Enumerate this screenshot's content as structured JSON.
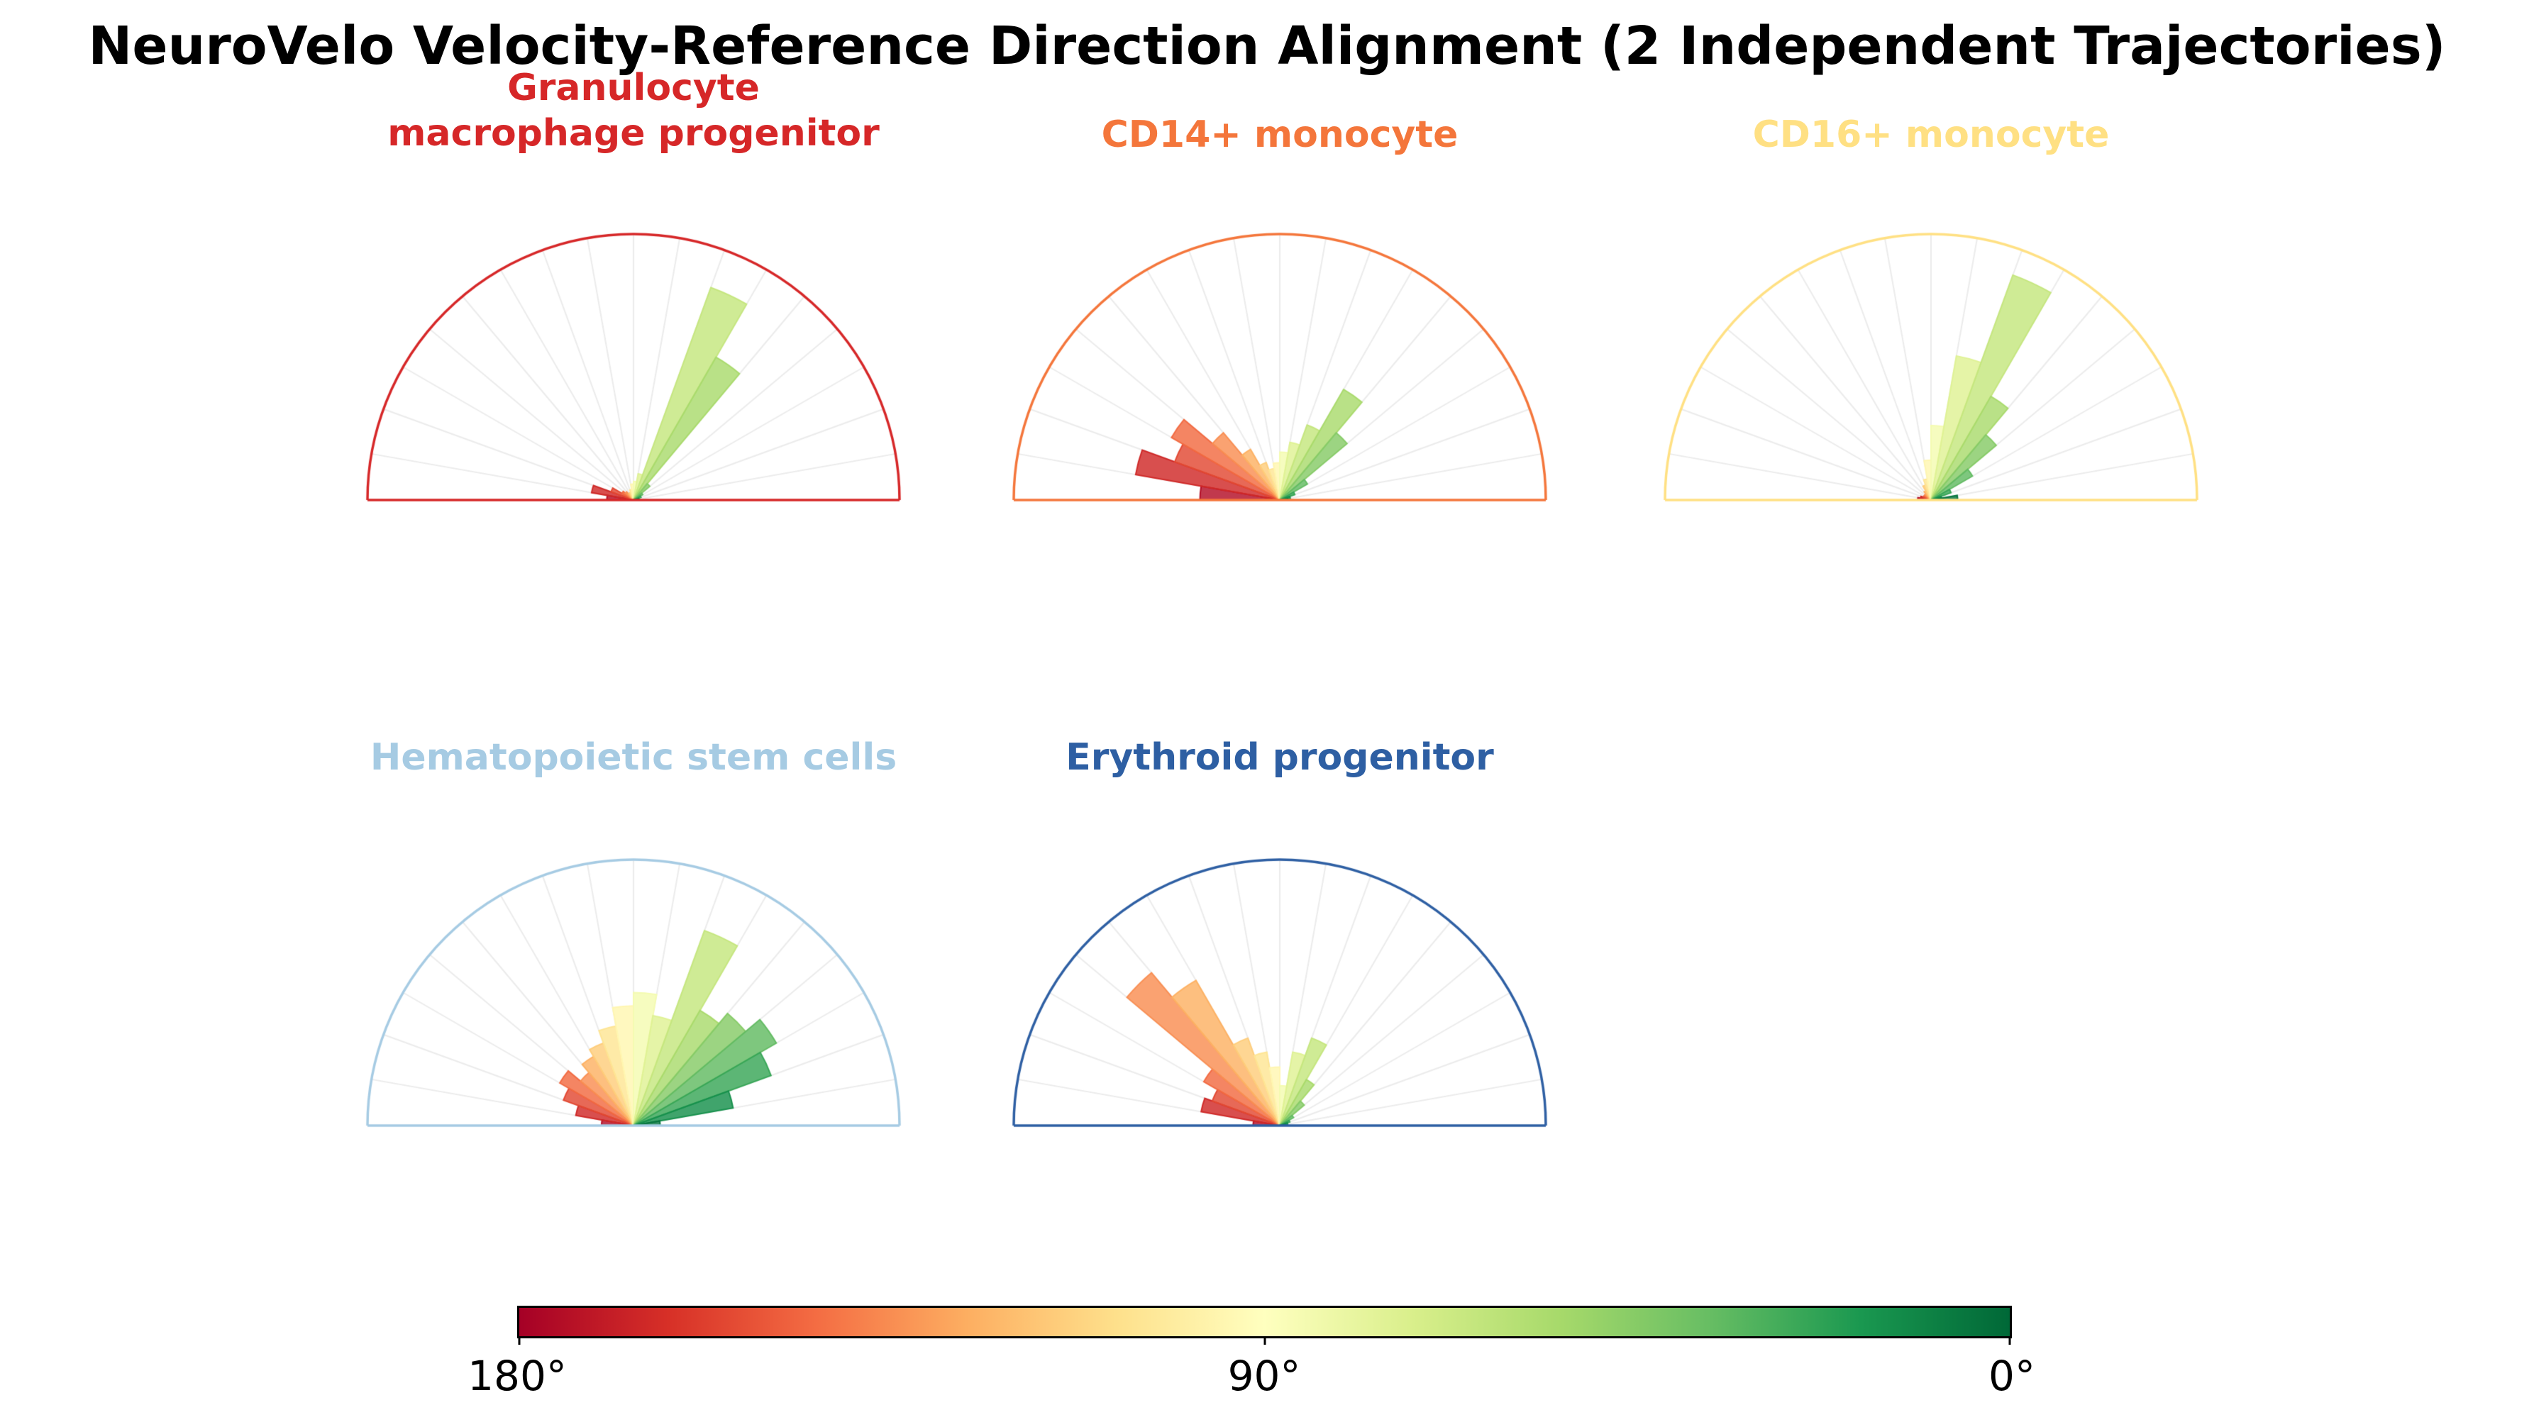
{
  "title": "NeuroVelo Velocity-Reference Direction Alignment (2 Independent Trajectories)",
  "chart_data": {
    "type": "polar-histogram",
    "subtype": "half-rose",
    "angle_range_deg": [
      0,
      180
    ],
    "bin_width_deg": 10,
    "radial_unit": "relative frequency (normalized, outer arc = 1.0)",
    "color_encoding": "bar color = RdYlGn colormap of bin angle, 180° = red, 90° = yellow, 0° = green",
    "plots": [
      {
        "title": "Granulocyte\nmacrophage progenitor",
        "color": "#d62728",
        "bin_centers_deg": [
          175,
          165,
          155,
          145,
          135,
          125,
          115,
          105,
          95,
          85,
          75,
          65,
          55,
          45,
          35,
          25,
          15,
          5
        ],
        "values": [
          0.1,
          0.16,
          0.09,
          0.05,
          0.04,
          0.03,
          0.03,
          0.04,
          0.06,
          0.07,
          0.1,
          0.85,
          0.62,
          0.08,
          0.04,
          0.03,
          0.02,
          0.02
        ]
      },
      {
        "title": "CD14+ monocyte",
        "color": "#f4763b",
        "bin_centers_deg": [
          175,
          165,
          155,
          145,
          135,
          125,
          115,
          105,
          95,
          85,
          75,
          65,
          55,
          45,
          35,
          25,
          15,
          5
        ],
        "values": [
          0.3,
          0.55,
          0.42,
          0.47,
          0.33,
          0.22,
          0.15,
          0.12,
          0.14,
          0.18,
          0.22,
          0.3,
          0.48,
          0.33,
          0.12,
          0.06,
          0.04,
          0.03
        ]
      },
      {
        "title": "CD16+ monocyte",
        "color": "#ffe083",
        "bin_centers_deg": [
          175,
          165,
          155,
          145,
          135,
          125,
          115,
          105,
          95,
          85,
          75,
          65,
          55,
          45,
          35,
          25,
          15,
          5
        ],
        "values": [
          0.05,
          0.04,
          0.03,
          0.03,
          0.03,
          0.04,
          0.06,
          0.08,
          0.15,
          0.28,
          0.55,
          0.9,
          0.45,
          0.32,
          0.18,
          0.08,
          0.04,
          0.1
        ]
      },
      {
        "title": "Hematopoietic stem cells",
        "color": "#a6cbe3",
        "bin_centers_deg": [
          175,
          165,
          155,
          145,
          135,
          125,
          115,
          105,
          95,
          85,
          75,
          65,
          55,
          45,
          35,
          25,
          15,
          5
        ],
        "values": [
          0.12,
          0.22,
          0.28,
          0.32,
          0.26,
          0.3,
          0.33,
          0.38,
          0.45,
          0.5,
          0.42,
          0.78,
          0.5,
          0.55,
          0.62,
          0.55,
          0.38,
          0.1
        ]
      },
      {
        "title": "Erythroid progenitor",
        "color": "#2e5fa3",
        "bin_centers_deg": [
          175,
          165,
          155,
          145,
          135,
          125,
          115,
          105,
          95,
          85,
          75,
          65,
          55,
          45,
          35,
          25,
          15,
          5
        ],
        "values": [
          0.1,
          0.3,
          0.27,
          0.33,
          0.75,
          0.63,
          0.35,
          0.28,
          0.22,
          0.15,
          0.28,
          0.35,
          0.2,
          0.12,
          0.06,
          0.04,
          0.03,
          0.02
        ]
      }
    ],
    "colorbar": {
      "orientation": "horizontal",
      "stops": [
        {
          "t": 0.0,
          "color": "#a50026"
        },
        {
          "t": 0.1,
          "color": "#d73027"
        },
        {
          "t": 0.2,
          "color": "#f46d43"
        },
        {
          "t": 0.3,
          "color": "#fdae61"
        },
        {
          "t": 0.4,
          "color": "#fee08b"
        },
        {
          "t": 0.5,
          "color": "#ffffbf"
        },
        {
          "t": 0.6,
          "color": "#d9ef8b"
        },
        {
          "t": 0.7,
          "color": "#a6d96a"
        },
        {
          "t": 0.8,
          "color": "#66bd63"
        },
        {
          "t": 0.9,
          "color": "#1a9850"
        },
        {
          "t": 1.0,
          "color": "#006837"
        }
      ],
      "ticks": [
        {
          "label": "180°",
          "pos": 0.0
        },
        {
          "label": "90°",
          "pos": 0.5
        },
        {
          "label": "0°",
          "pos": 1.0
        }
      ]
    },
    "grid": {
      "radial_spokes_every_deg": 10,
      "spoke_color": "#ebebeb"
    }
  }
}
